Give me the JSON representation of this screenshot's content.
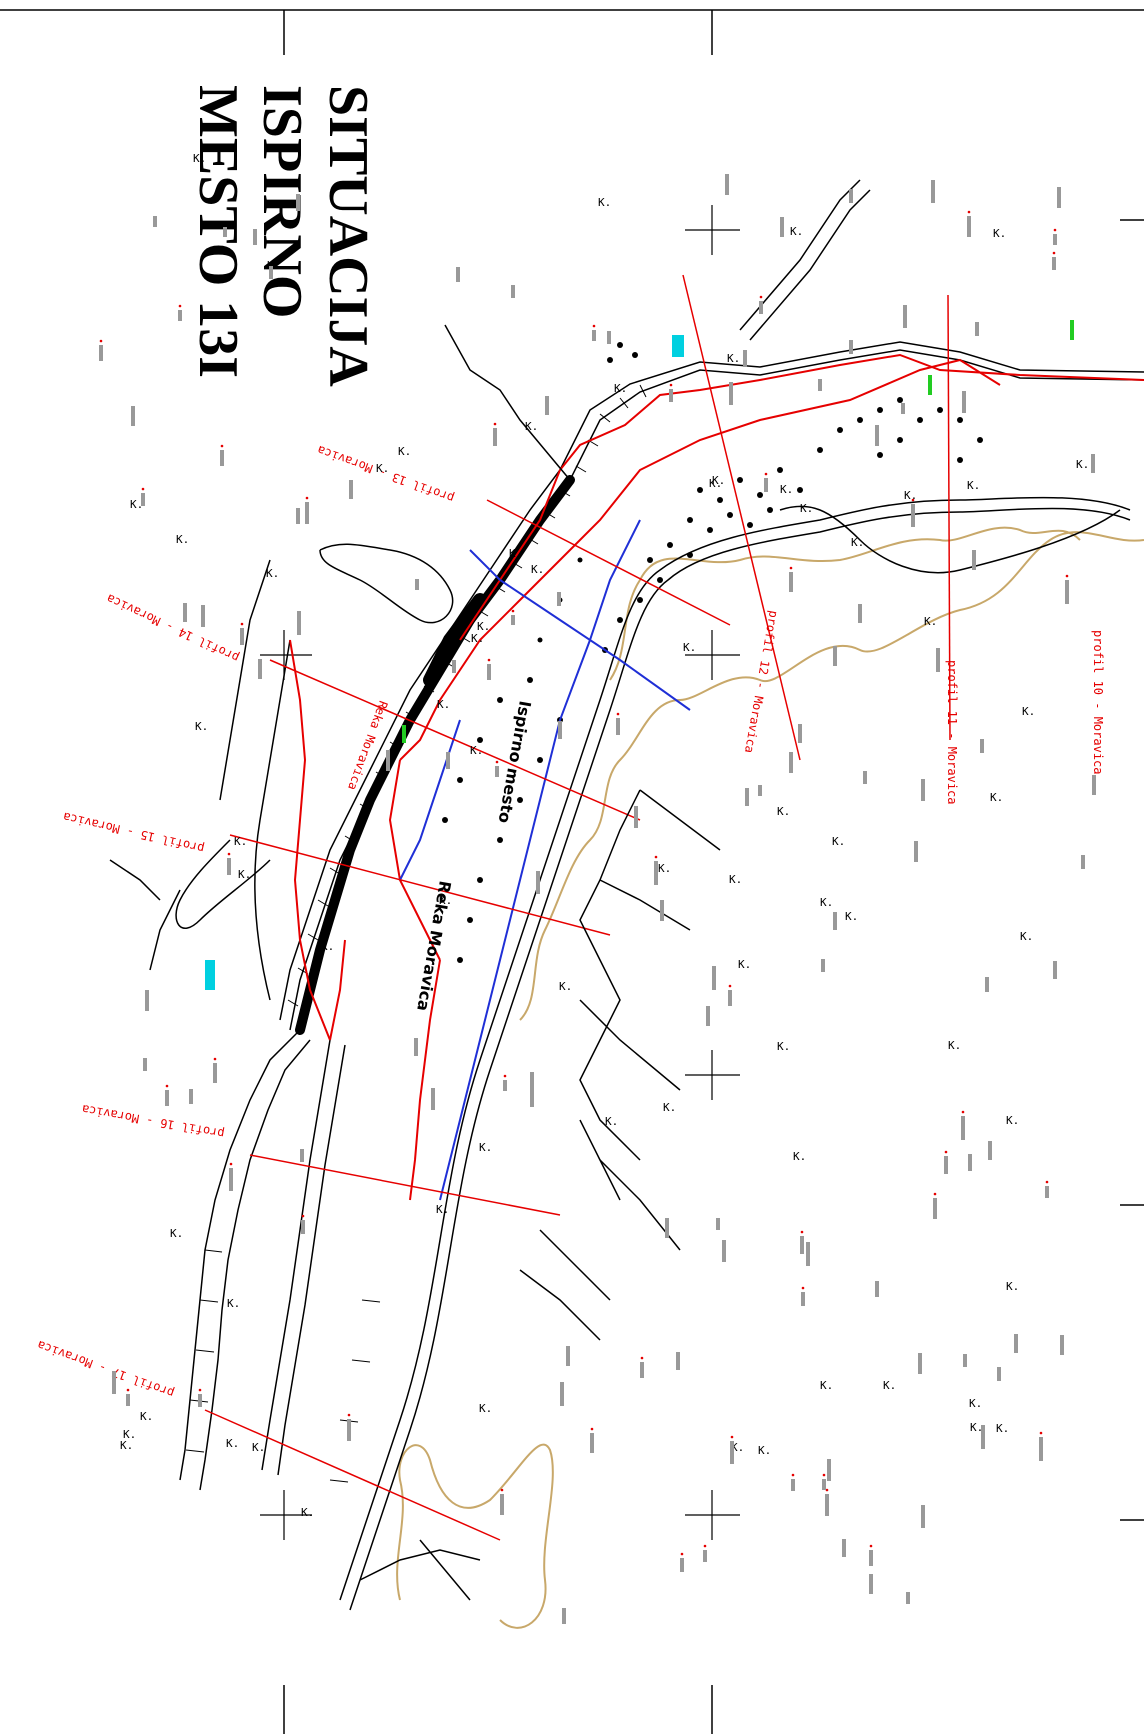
{
  "title": {
    "line1": "SITUACIJA",
    "line2": "ISPIRNO",
    "line3": "MESTO 13I"
  },
  "profiles": [
    {
      "label": "profil 10 - Moravica"
    },
    {
      "label": "profil 11 - Moravica"
    },
    {
      "label": "profil 12 - Moravica"
    },
    {
      "label": "profil 13 - Moravica"
    },
    {
      "label": "profil 14 - Moravica"
    },
    {
      "label": "profil 15 - Moravica"
    },
    {
      "label": "profil 16 - Moravica"
    },
    {
      "label": "profil 17 - Moravica"
    }
  ],
  "river_labels": [
    {
      "text": "Reka Moravica"
    },
    {
      "text": "Ispirno mesto"
    },
    {
      "text": "Reka Moravica"
    }
  ],
  "spot_mark": "K.",
  "colors": {
    "frame": "#000000",
    "profile_lines": "#e60000",
    "blue_lines": "#1f2fd6",
    "contour": "#c8a86a",
    "cyan": "#00d0e0",
    "green": "#22cc22"
  }
}
